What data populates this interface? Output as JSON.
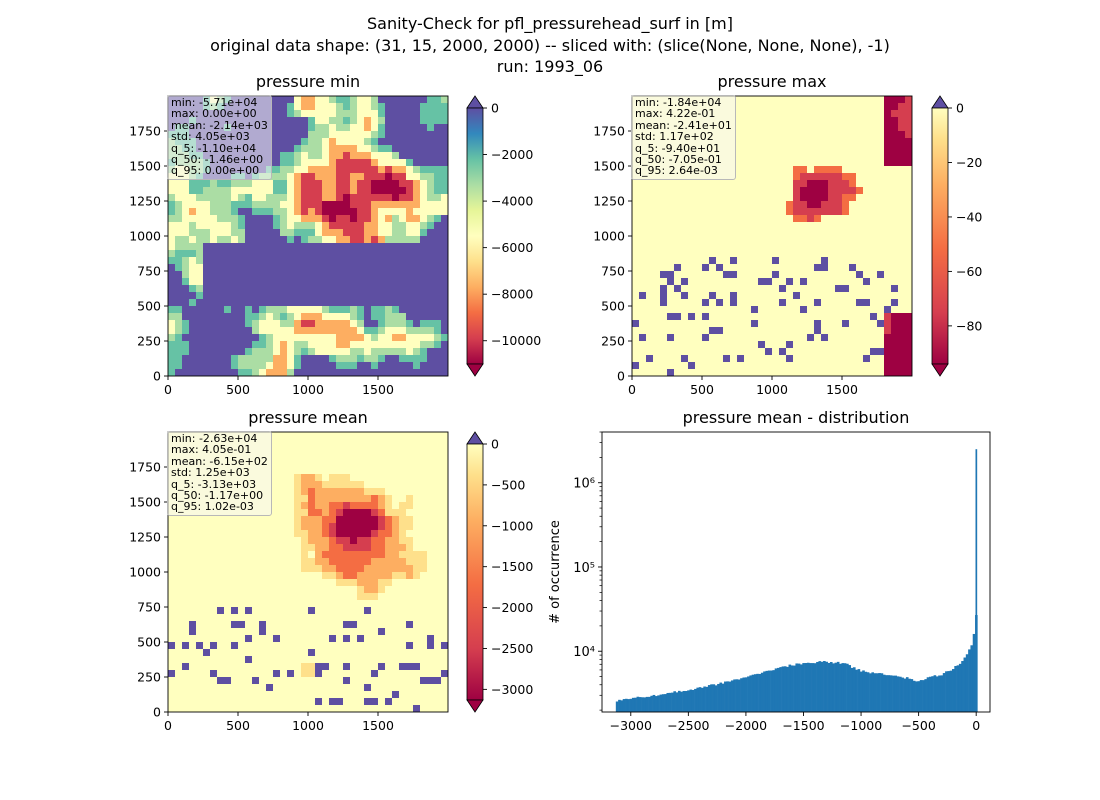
{
  "figure": {
    "title_line1": "Sanity-Check for pfl_pressurehead_surf in [m]",
    "title_line2": "original data shape: (31, 15, 2000, 2000) -- sliced with: (slice(None, None, None), -1)",
    "title_line3": "run: 1993_06"
  },
  "panels": {
    "min": {
      "title": "pressure min",
      "stats": [
        "min: -5.71e+04",
        "max: 0.00e+00",
        "mean: -2.14e+03",
        "std: 4.05e+03",
        "q_5: -1.10e+04",
        "q_50: -1.46e+00",
        "q_95: 0.00e+00"
      ]
    },
    "max": {
      "title": "pressure max",
      "stats": [
        "min: -1.84e+04",
        "max: 4.22e-01",
        "mean: -2.41e+01",
        "std: 1.17e+02",
        "q_5: -9.40e+01",
        "q_50: -7.05e-01",
        "q_95: 2.64e-03"
      ]
    },
    "mean": {
      "title": "pressure mean",
      "stats": [
        "min: -2.63e+04",
        "max: 4.05e-01",
        "mean: -6.15e+02",
        "std: 1.25e+03",
        "q_5: -3.13e+03",
        "q_50: -1.17e+00",
        "q_95: 1.02e-03"
      ]
    },
    "dist": {
      "title": "pressure mean - distribution",
      "ylabel": "# of occurrence"
    }
  },
  "colors": {
    "spectral": [
      "#9e0142",
      "#d53e4f",
      "#f46d43",
      "#fdae61",
      "#fee08b",
      "#ffffbf",
      "#e6f598",
      "#abdda4",
      "#66c2a5",
      "#3288bd",
      "#5e4fa2"
    ],
    "hist_bar": "#1f77b4"
  },
  "chart_data": [
    {
      "type": "heatmap",
      "title": "pressure min",
      "colormap": "Spectral",
      "xlim": [
        0,
        2000
      ],
      "ylim": [
        0,
        2000
      ],
      "xticks": [
        0,
        500,
        1000,
        1500
      ],
      "yticks": [
        0,
        250,
        500,
        750,
        1000,
        1250,
        1500,
        1750
      ],
      "colorbar": {
        "range": [
          -11000,
          0
        ],
        "ticks": [
          0,
          -2000,
          -4000,
          -6000,
          -8000,
          -10000
        ],
        "tick_labels": [
          "0",
          "−2000",
          "−4000",
          "−6000",
          "−8000",
          "−10000"
        ],
        "extend": "both"
      }
    },
    {
      "type": "heatmap",
      "title": "pressure max",
      "colormap": "Spectral",
      "xlim": [
        0,
        2000
      ],
      "ylim": [
        0,
        2000
      ],
      "xticks": [
        0,
        500,
        1000,
        1500
      ],
      "yticks": [
        0,
        250,
        500,
        750,
        1000,
        1250,
        1500,
        1750
      ],
      "colorbar": {
        "range": [
          -94,
          0
        ],
        "ticks": [
          0,
          -20,
          -40,
          -60,
          -80
        ],
        "tick_labels": [
          "0",
          "−20",
          "−40",
          "−60",
          "−80"
        ],
        "extend": "both"
      }
    },
    {
      "type": "heatmap",
      "title": "pressure mean",
      "colormap": "Spectral",
      "xlim": [
        0,
        2000
      ],
      "ylim": [
        0,
        2000
      ],
      "xticks": [
        0,
        500,
        1000,
        1500
      ],
      "yticks": [
        0,
        250,
        500,
        750,
        1000,
        1250,
        1500,
        1750
      ],
      "colorbar": {
        "range": [
          -3130,
          0
        ],
        "ticks": [
          0,
          -500,
          -1000,
          -1500,
          -2000,
          -2500,
          -3000
        ],
        "tick_labels": [
          "0",
          "−500",
          "−1000",
          "−1500",
          "−2000",
          "−2500",
          "−3000"
        ],
        "extend": "both"
      }
    },
    {
      "type": "bar",
      "subtype": "histogram",
      "title": "pressure mean - distribution",
      "xlabel": "",
      "ylabel": "# of occurrence",
      "yscale": "log",
      "xlim": [
        -3250,
        120
      ],
      "ylim": [
        1900,
        4000000
      ],
      "xticks": [
        -3000,
        -2500,
        -2000,
        -1500,
        -1000,
        -500,
        0
      ],
      "xtick_labels": [
        "−3000",
        "−2500",
        "−2000",
        "−1500",
        "−1000",
        "−500",
        "0"
      ],
      "yticks_major": [
        10000,
        100000,
        1000000
      ],
      "ytick_labels": [
        "10⁴",
        "10⁵",
        "10⁶"
      ],
      "bin_width": 20,
      "profile_x": [
        -3130,
        -3100,
        -3000,
        -2800,
        -2600,
        -2400,
        -2200,
        -2000,
        -1800,
        -1600,
        -1400,
        -1300,
        -1200,
        -1150,
        -1100,
        -1000,
        -900,
        -800,
        -700,
        -600,
        -500,
        -400,
        -300,
        -200,
        -120,
        -80,
        -40,
        -20,
        -5
      ],
      "profile_y": [
        2600,
        2600,
        2750,
        3000,
        3300,
        3700,
        4200,
        5000,
        5900,
        6900,
        7400,
        7500,
        7300,
        7300,
        6700,
        5900,
        5500,
        5300,
        5000,
        4800,
        4400,
        5000,
        5300,
        6200,
        7500,
        9000,
        12000,
        16000,
        27000
      ],
      "spike": {
        "x": 0,
        "y": 2500000
      }
    }
  ]
}
